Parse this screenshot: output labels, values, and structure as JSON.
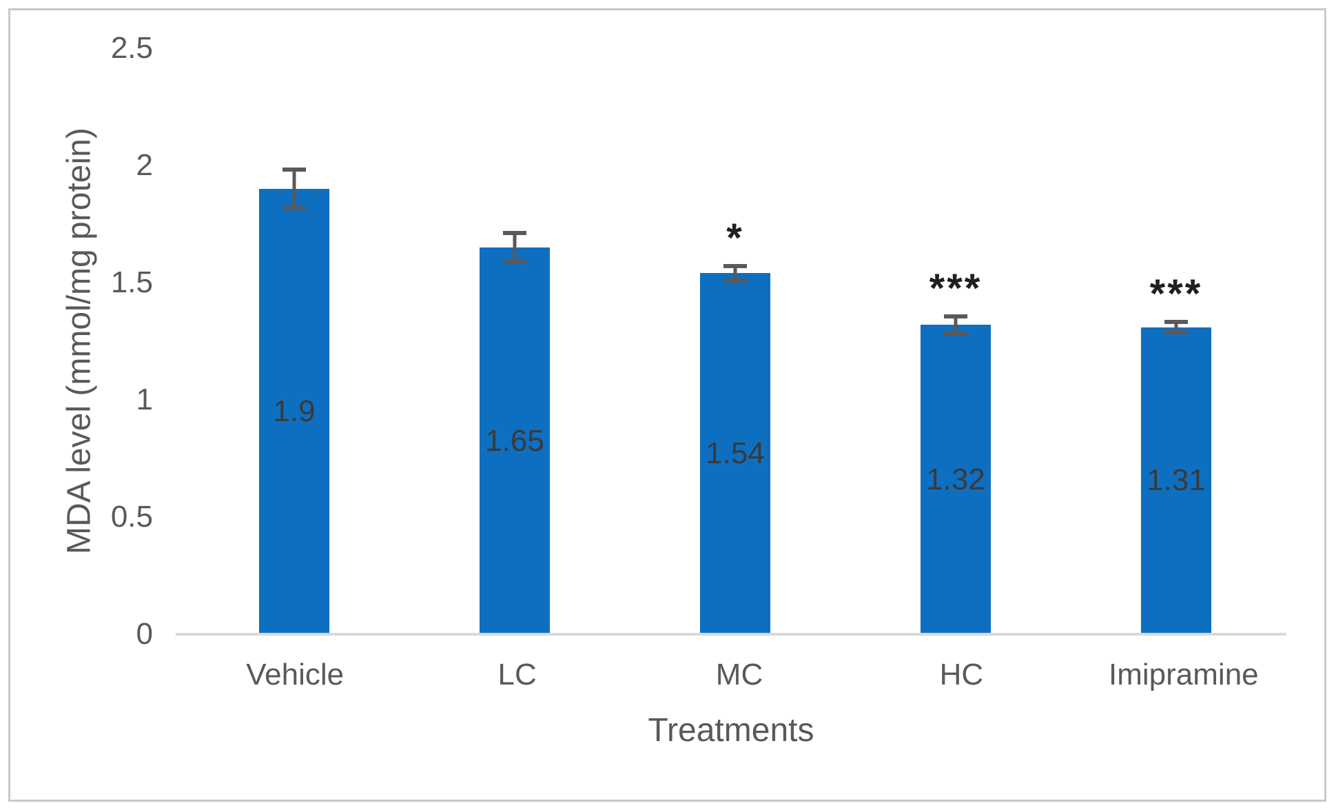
{
  "figure": {
    "background": "#ffffff",
    "frame_border_color": "#c9c9c9"
  },
  "chart_data": {
    "type": "bar",
    "title": "",
    "xlabel": "Treatments",
    "ylabel": "MDA level (mmol/mg protein)",
    "categories": [
      "Vehicle",
      "LC",
      "MC",
      "HC",
      "Imipramine"
    ],
    "values": [
      1.9,
      1.65,
      1.54,
      1.32,
      1.31
    ],
    "data_labels": [
      "1.9",
      "1.65",
      "1.54",
      "1.32",
      "1.31"
    ],
    "error_bars": [
      0.09,
      0.07,
      0.04,
      0.045,
      0.03
    ],
    "significance": [
      "",
      "",
      "*",
      "***",
      "***"
    ],
    "ylim": [
      0,
      2.5
    ],
    "ytick_values": [
      0,
      0.5,
      1,
      1.5,
      2,
      2.5
    ],
    "ytick_labels": [
      "0",
      "0.5",
      "1",
      "1.5",
      "2",
      "2.5"
    ],
    "grid": false,
    "legend": "none",
    "colors": {
      "bar": "#0e6fc0",
      "error_bar": "#595959",
      "data_label": "#3a3a3a",
      "significance": "#1f1f1f",
      "axis_line": "#d9d9d9",
      "tick_text": "#595959",
      "axis_title_text": "#595959"
    }
  }
}
